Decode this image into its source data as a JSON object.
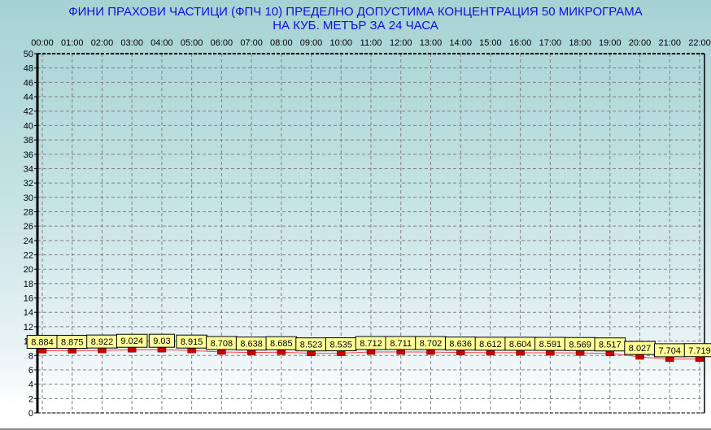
{
  "chart_data": {
    "type": "line",
    "title_line1": "ФИНИ  ПРАХОВИ ЧАСТИЦИ  (ФПЧ 10)  ПРЕДЕЛНО ДОПУСТИМА КОНЦЕНТРАЦИЯ 50 МИКРОГРАМА",
    "title_line2": "НА КУБ. МЕТЪР    ЗА 24 ЧАСА",
    "categories": [
      "00:00",
      "01:00",
      "02:00",
      "03:00",
      "04:00",
      "05:00",
      "06:00",
      "07:00",
      "08:00",
      "09:00",
      "10:00",
      "11:00",
      "12:00",
      "13:00",
      "14:00",
      "15:00",
      "16:00",
      "17:00",
      "18:00",
      "19:00",
      "20:00",
      "21:00",
      "22:00"
    ],
    "values": [
      8.884,
      8.875,
      8.922,
      9.024,
      9.03,
      8.915,
      8.708,
      8.638,
      8.685,
      8.523,
      8.535,
      8.712,
      8.711,
      8.702,
      8.636,
      8.612,
      8.604,
      8.591,
      8.569,
      8.517,
      8.027,
      7.704,
      7.719
    ],
    "ylim": [
      0,
      50
    ],
    "ytick_step": 2,
    "grid": true,
    "xaxis_position": "top",
    "colors": {
      "title": "#1010d8",
      "marker": "#cc0000",
      "line": "#ff4040",
      "label_bg": "#ffff99"
    }
  }
}
